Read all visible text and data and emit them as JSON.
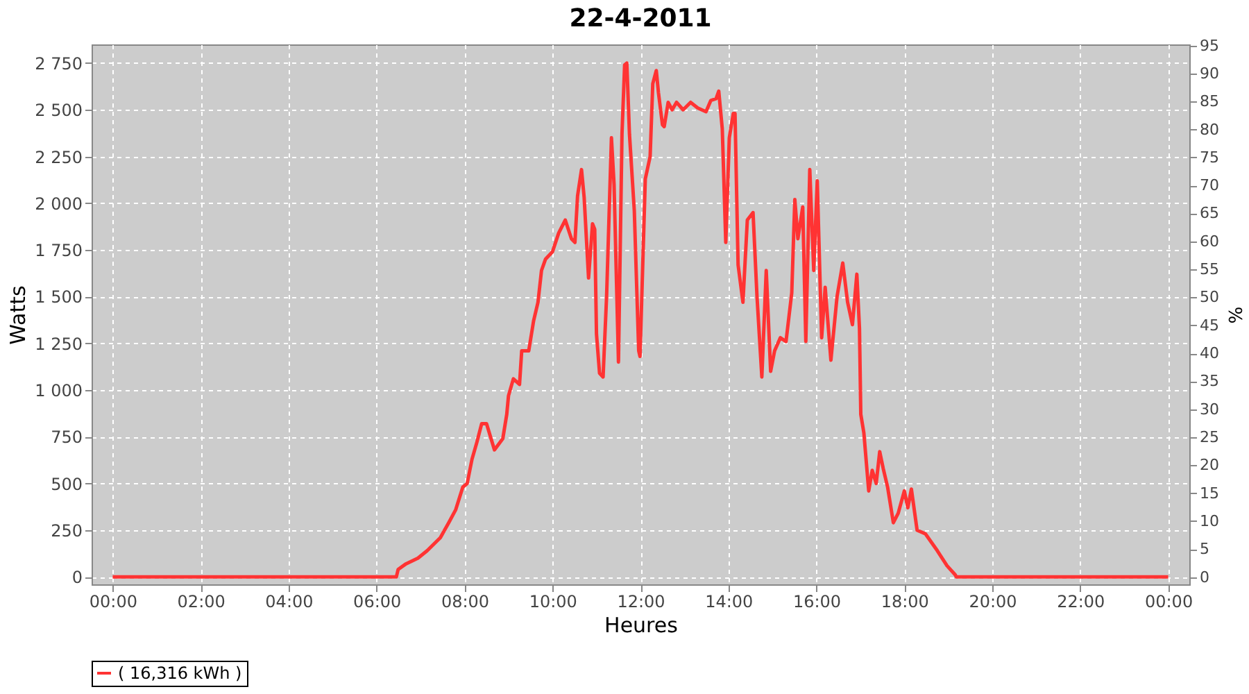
{
  "chart_data": {
    "type": "line",
    "title": "22-4-2011",
    "xlabel": "Heures",
    "ylabel": "Watts",
    "y2label": "%",
    "xlim": [
      -0.48,
      24.48
    ],
    "xticks": [
      {
        "value": 0,
        "label": "00:00"
      },
      {
        "value": 2,
        "label": "02:00"
      },
      {
        "value": 4,
        "label": "04:00"
      },
      {
        "value": 6,
        "label": "06:00"
      },
      {
        "value": 8,
        "label": "08:00"
      },
      {
        "value": 10,
        "label": "10:00"
      },
      {
        "value": 12,
        "label": "12:00"
      },
      {
        "value": 14,
        "label": "14:00"
      },
      {
        "value": 16,
        "label": "16:00"
      },
      {
        "value": 18,
        "label": "18:00"
      },
      {
        "value": 20,
        "label": "20:00"
      },
      {
        "value": 22,
        "label": "22:00"
      },
      {
        "value": 24,
        "label": "00:00"
      }
    ],
    "ylim": [
      -40,
      2850
    ],
    "yticks": [
      0,
      250,
      500,
      750,
      {
        "value": 1000,
        "label": "1 000"
      },
      {
        "value": 1250,
        "label": "1 250"
      },
      {
        "value": 1500,
        "label": "1 500"
      },
      {
        "value": 1750,
        "label": "1 750"
      },
      {
        "value": 2000,
        "label": "2 000"
      },
      {
        "value": 2250,
        "label": "2 250"
      },
      {
        "value": 2500,
        "label": "2 500"
      },
      {
        "value": 2750,
        "label": "2 750"
      }
    ],
    "y2lim": [
      -1.3,
      95.2
    ],
    "y2ticks": [
      0,
      5,
      10,
      15,
      20,
      25,
      30,
      35,
      40,
      45,
      50,
      55,
      60,
      65,
      70,
      75,
      80,
      85,
      90,
      95
    ],
    "grid": true,
    "legend": "bottom",
    "marker": "none",
    "line_style": "solid",
    "series": [
      {
        "name": "( 16,316 kWh )",
        "color": "#ff3333",
        "x": [
          0,
          6.45,
          6.49,
          6.67,
          6.94,
          7.15,
          7.45,
          7.64,
          7.8,
          7.96,
          8.06,
          8.17,
          8.28,
          8.39,
          8.5,
          8.68,
          8.87,
          8.96,
          9.0,
          9.11,
          9.25,
          9.3,
          9.46,
          9.57,
          9.67,
          9.75,
          9.84,
          10.0,
          10.14,
          10.29,
          10.43,
          10.51,
          10.57,
          10.66,
          10.72,
          10.82,
          10.91,
          10.96,
          11.0,
          11.07,
          11.15,
          11.23,
          11.34,
          11.4,
          11.5,
          11.58,
          11.64,
          11.69,
          11.75,
          11.86,
          11.96,
          11.99,
          12.11,
          12.22,
          12.28,
          12.36,
          12.41,
          12.5,
          12.54,
          12.63,
          12.72,
          12.82,
          12.97,
          13.14,
          13.3,
          13.49,
          13.6,
          13.72,
          13.78,
          13.86,
          13.94,
          14.02,
          14.11,
          14.15,
          14.22,
          14.33,
          14.43,
          14.56,
          14.65,
          14.76,
          14.86,
          14.96,
          15.05,
          15.18,
          15.31,
          15.44,
          15.51,
          15.58,
          15.69,
          15.76,
          15.85,
          15.94,
          16.02,
          16.12,
          16.2,
          16.33,
          16.47,
          16.6,
          16.71,
          16.82,
          16.92,
          16.98,
          17.01,
          17.08,
          17.19,
          17.27,
          17.36,
          17.44,
          17.52,
          17.62,
          17.75,
          17.86,
          18.0,
          18.08,
          18.16,
          18.29,
          18.48,
          18.75,
          18.97,
          19.16,
          19.18,
          24
        ],
        "values": [
          0,
          0,
          40,
          70,
          100,
          140,
          210,
          290,
          360,
          480,
          500,
          630,
          720,
          820,
          820,
          680,
          740,
          870,
          970,
          1060,
          1030,
          1210,
          1210,
          1370,
          1470,
          1640,
          1700,
          1740,
          1840,
          1910,
          1810,
          1790,
          2040,
          2180,
          2030,
          1600,
          1890,
          1860,
          1300,
          1090,
          1070,
          1500,
          2350,
          2100,
          1150,
          2370,
          2740,
          2750,
          2370,
          1960,
          1210,
          1180,
          2130,
          2250,
          2640,
          2710,
          2590,
          2420,
          2410,
          2540,
          2500,
          2540,
          2500,
          2540,
          2510,
          2490,
          2550,
          2560,
          2600,
          2400,
          1790,
          2350,
          2480,
          2480,
          1670,
          1470,
          1910,
          1950,
          1500,
          1070,
          1640,
          1100,
          1210,
          1280,
          1260,
          1520,
          2020,
          1810,
          1980,
          1260,
          2180,
          1640,
          2120,
          1280,
          1550,
          1160,
          1500,
          1680,
          1470,
          1350,
          1620,
          1330,
          870,
          770,
          460,
          570,
          500,
          670,
          580,
          480,
          290,
          340,
          460,
          370,
          470,
          250,
          230,
          140,
          60,
          10,
          0,
          0
        ]
      }
    ]
  }
}
